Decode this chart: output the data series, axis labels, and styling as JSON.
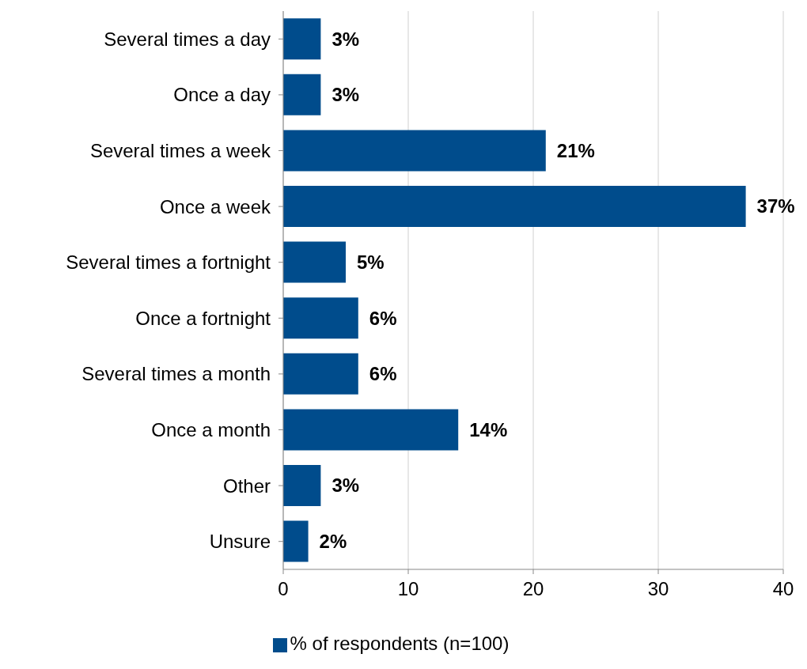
{
  "chart_data": {
    "type": "bar",
    "orientation": "horizontal",
    "categories": [
      "Several times a day",
      "Once a day",
      "Several times a week",
      "Once a week",
      "Several times a fortnight",
      "Once a fortnight",
      "Several times a month",
      "Once a month",
      "Other",
      "Unsure"
    ],
    "series": [
      {
        "name": "% of respondents (n=100)",
        "color": "#004c8c",
        "values": [
          3,
          3,
          21,
          37,
          5,
          6,
          6,
          14,
          3,
          2
        ],
        "value_labels": [
          "3%",
          "3%",
          "21%",
          "37%",
          "5%",
          "6%",
          "6%",
          "14%",
          "3%",
          "2%"
        ]
      }
    ],
    "xlim": [
      0,
      40
    ],
    "xticks": [
      0,
      10,
      20,
      30,
      40
    ],
    "grid": "x",
    "legend": "bottom"
  }
}
